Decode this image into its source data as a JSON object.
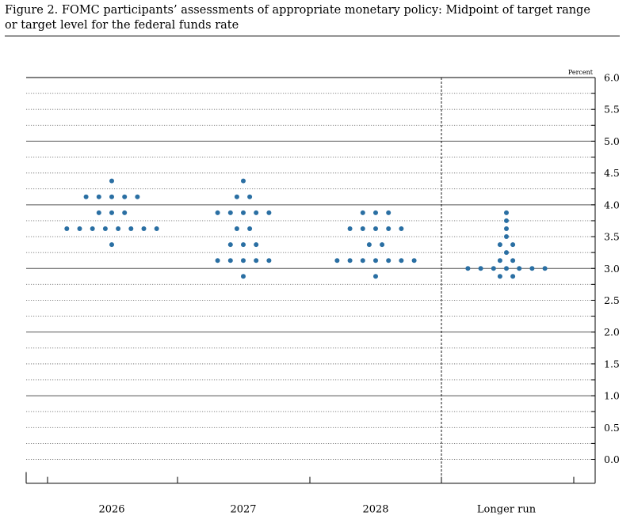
{
  "figure": {
    "title_line1": "Figure 2. FOMC participants’ assessments of appropriate monetary policy: Midpoint of target range",
    "title_line2": "or target level for the federal funds rate"
  },
  "chart_data": {
    "type": "scatter",
    "subtype": "dot-plot",
    "ylabel": "Percent",
    "ylim": [
      -0.375,
      6.0
    ],
    "y_ticks": [
      "0.0",
      "0.5",
      "1.0",
      "1.5",
      "2.0",
      "2.5",
      "3.0",
      "3.5",
      "4.0",
      "4.5",
      "5.0",
      "5.5",
      "6.0"
    ],
    "y_tick_values": [
      0.0,
      0.5,
      1.0,
      1.5,
      2.0,
      2.5,
      3.0,
      3.5,
      4.0,
      4.5,
      5.0,
      5.5,
      6.0
    ],
    "solid_gridlines": [
      1.0,
      2.0,
      3.0,
      4.0,
      5.0,
      6.0
    ],
    "dot_color": "#2a6fa3",
    "grid": true,
    "categories": [
      "2026",
      "2027",
      "2028",
      "Longer run"
    ],
    "dots": [
      {
        "category": "2026",
        "rows": [
          {
            "y": 4.375,
            "count": 1
          },
          {
            "y": 4.125,
            "count": 5
          },
          {
            "y": 3.875,
            "count": 3
          },
          {
            "y": 3.625,
            "count": 8
          },
          {
            "y": 3.375,
            "count": 1
          }
        ]
      },
      {
        "category": "2027",
        "rows": [
          {
            "y": 4.375,
            "count": 1
          },
          {
            "y": 4.125,
            "count": 2
          },
          {
            "y": 3.875,
            "count": 5
          },
          {
            "y": 3.625,
            "count": 2
          },
          {
            "y": 3.375,
            "count": 3
          },
          {
            "y": 3.125,
            "count": 5
          },
          {
            "y": 2.875,
            "count": 1
          }
        ]
      },
      {
        "category": "2028",
        "rows": [
          {
            "y": 3.875,
            "count": 3
          },
          {
            "y": 3.625,
            "count": 5
          },
          {
            "y": 3.375,
            "count": 2
          },
          {
            "y": 3.125,
            "count": 7
          },
          {
            "y": 2.875,
            "count": 1
          }
        ]
      },
      {
        "category": "Longer run",
        "rows": [
          {
            "y": 3.875,
            "count": 1
          },
          {
            "y": 3.75,
            "count": 1
          },
          {
            "y": 3.625,
            "count": 1
          },
          {
            "y": 3.5,
            "count": 1
          },
          {
            "y": 3.375,
            "count": 2
          },
          {
            "y": 3.25,
            "count": 1
          },
          {
            "y": 3.125,
            "count": 2
          },
          {
            "y": 3.0,
            "count": 7
          },
          {
            "y": 2.875,
            "count": 2
          }
        ]
      }
    ]
  }
}
